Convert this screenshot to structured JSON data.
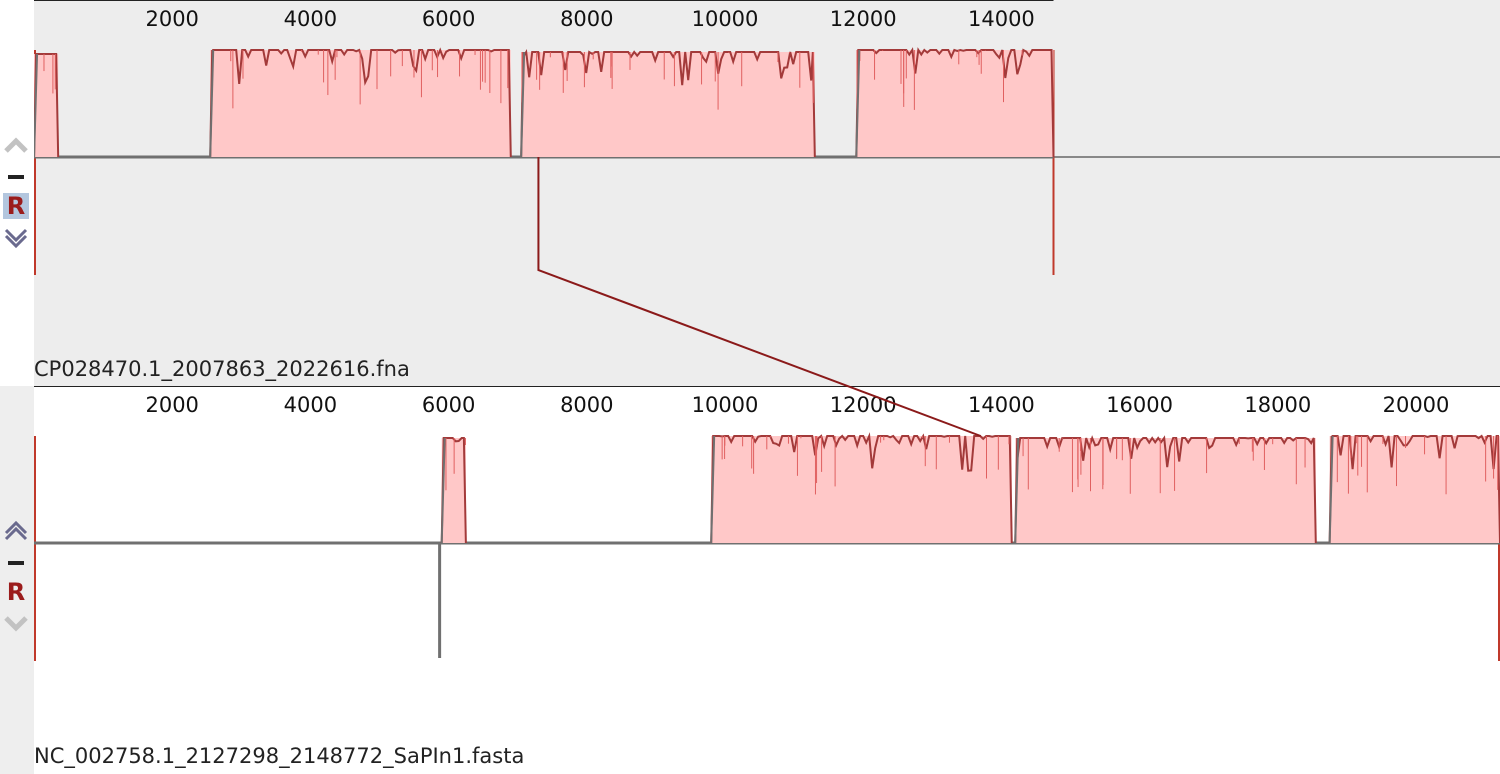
{
  "colors": {
    "profile_fill": "#ffc8c8",
    "profile_line": "#a33a3a",
    "profile_light": "#e06060",
    "gap_line": "#707070",
    "connector": "#8b1a1a",
    "boundary": "#c0392b",
    "control_active": "#6a6a8e",
    "control_disabled": "#c2c2c2",
    "r_button": "#9b1c1c"
  },
  "sequences": [
    {
      "name": "CP028470.1_2007863_2022616.fna",
      "length": 14754,
      "ruler_ticks": [
        2000,
        4000,
        6000,
        8000,
        10000,
        12000,
        14000
      ],
      "controls": {
        "up": "disabled",
        "minus": "enabled",
        "r": "R",
        "r_active": true,
        "down": "enabled"
      },
      "segments": [
        {
          "start": 1,
          "end": 350,
          "level": 0.9
        },
        {
          "start": 2550,
          "end": 6900,
          "level": 1.0
        },
        {
          "start": 7050,
          "end": 11300,
          "level": 0.95
        },
        {
          "start": 11900,
          "end": 14754,
          "level": 1.0
        }
      ],
      "reverse_blocks": []
    },
    {
      "name": "NC_002758.1_2127298_2148772_SaPIn1.fasta",
      "length": 21475,
      "ruler_ticks": [
        2000,
        4000,
        6000,
        8000,
        10000,
        12000,
        14000,
        16000,
        18000,
        20000
      ],
      "controls": {
        "up": "enabled",
        "minus": "enabled",
        "r": "R",
        "r_active": false,
        "down": "disabled"
      },
      "segments": [
        {
          "start": 5900,
          "end": 6250,
          "level": 0.95
        },
        {
          "start": 9800,
          "end": 14150,
          "level": 1.0
        },
        {
          "start": 14200,
          "end": 18550,
          "level": 0.95
        },
        {
          "start": 18750,
          "end": 21475,
          "level": 1.0
        }
      ],
      "reverse_blocks": [
        {
          "start": 5870,
          "end": 5900
        }
      ]
    }
  ],
  "connector": {
    "top_position": 7300,
    "bottom_position": 13700
  }
}
